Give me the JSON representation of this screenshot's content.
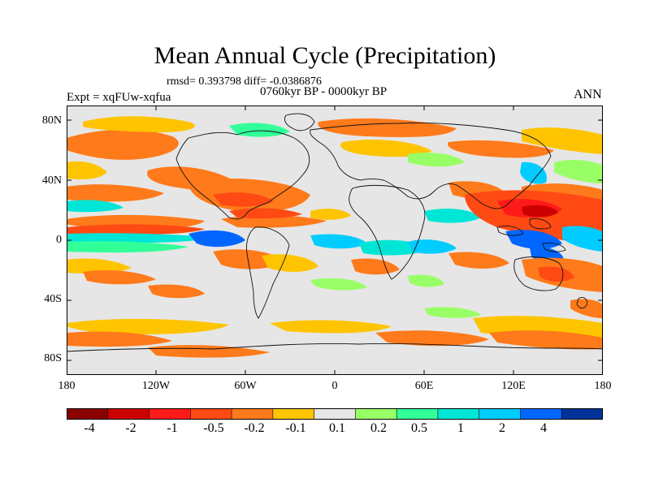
{
  "title": "Mean Annual Cycle (Precipitation)",
  "stats": "rmsd= 0.393798 diff= -0.0386876",
  "period": "0760kyr BP - 0000kyr BP",
  "experiment": "Expt = xqFUw-xqfua",
  "season": "ANN",
  "map": {
    "lat_labels": [
      "80N",
      "40N",
      "0",
      "40S",
      "80S"
    ],
    "lon_labels": [
      "180",
      "120W",
      "60W",
      "0",
      "60E",
      "120E",
      "180"
    ]
  },
  "colorbar": {
    "colors": [
      "#8b0000",
      "#cc0000",
      "#ff1a1a",
      "#ff4a14",
      "#ff7a1a",
      "#ffc400",
      "#e6e6e6",
      "#99ff66",
      "#33ff99",
      "#00e6d6",
      "#00ccff",
      "#0066ff",
      "#003399"
    ],
    "labels": [
      "-4",
      "-2",
      "-1",
      "-0.5",
      "-0.2",
      "-0.1",
      "0.1",
      "0.2",
      "0.5",
      "1",
      "2",
      "4"
    ]
  },
  "palette": {
    "land_ocean_bg": "#e6e6e6",
    "dry_strong": "#ff4a14",
    "dry": "#ff7a1a",
    "dry_weak": "#ffc400",
    "wet_weak": "#99ff66",
    "wet": "#33ff99",
    "wet_more": "#00e6d6",
    "wet_strong": "#00ccff",
    "wet_very": "#0066ff",
    "red": "#ff1a1a",
    "darkred": "#cc0000"
  }
}
